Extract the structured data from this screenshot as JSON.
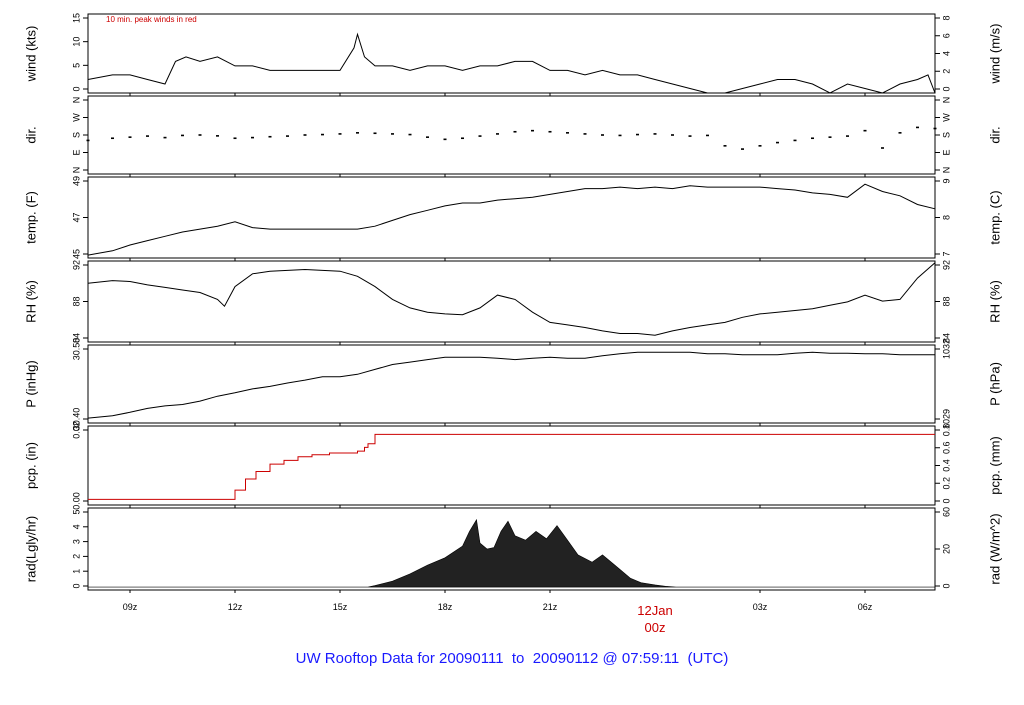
{
  "title": "UW Rooftop Data for 20090111  to  20090112 @ 07:59:11  (UTC)",
  "colors": {
    "primary_line": "#000000",
    "accent": "#cc0000",
    "title": "#1a1aff",
    "frame": "#000000"
  },
  "x_axis": {
    "ticks": [
      "09z",
      "12z",
      "15z",
      "18z",
      "21z",
      "03z",
      "06z"
    ],
    "day_marker": {
      "line1": "12Jan",
      "line2": "00z"
    }
  },
  "chart_data": [
    {
      "type": "line",
      "ylabel": "wind (kts)",
      "ylabel_right": "wind (m/s)",
      "annotation": "10 min. peak winds in red",
      "ylim": [
        0,
        17.5
      ],
      "yticks": [
        "0",
        "5",
        "10",
        "15"
      ],
      "yticks_right": [
        "0",
        "2",
        "4",
        "6",
        "8"
      ],
      "x": [
        7.8,
        8.5,
        9.0,
        9.5,
        10.0,
        10.3,
        10.6,
        11.0,
        11.5,
        12.0,
        12.5,
        13.0,
        13.5,
        14.0,
        14.5,
        15.0,
        15.4,
        15.5,
        15.7,
        16.0,
        16.5,
        17.0,
        17.5,
        18.0,
        18.5,
        19.0,
        19.5,
        20.0,
        20.5,
        21.0,
        21.5,
        22.0,
        22.5,
        23.0,
        23.5,
        24.0,
        24.5,
        25.0,
        25.5,
        26.0,
        26.5,
        27.0,
        27.5,
        28.0,
        28.5,
        29.0,
        29.5,
        30.0,
        30.5,
        31.0,
        31.5,
        31.8,
        32.0
      ],
      "values": [
        3,
        4,
        4,
        3,
        2,
        7,
        8,
        7,
        8,
        6,
        6,
        5,
        5,
        5,
        5,
        5,
        10,
        13,
        8,
        6,
        6,
        5,
        6,
        6,
        5,
        6,
        6,
        7,
        7,
        5,
        5,
        4,
        5,
        4,
        4,
        3,
        2,
        1,
        0,
        0,
        1,
        2,
        3,
        3,
        2,
        0,
        2,
        1,
        0,
        2,
        3,
        4,
        0
      ]
    },
    {
      "type": "scatter",
      "ylabel": "dir.",
      "ylabel_right": "dir.",
      "ylim": [
        0,
        360
      ],
      "yticks": [
        "N",
        "E",
        "S",
        "W",
        "N"
      ],
      "yticks_right": [
        "N",
        "E",
        "S",
        "W",
        "N"
      ],
      "x": [
        7.8,
        8.5,
        9.0,
        9.5,
        10.0,
        10.5,
        11.0,
        11.5,
        12.0,
        12.5,
        13.0,
        13.5,
        14.0,
        14.5,
        15.0,
        15.5,
        16.0,
        16.5,
        17.0,
        17.5,
        18.0,
        18.5,
        19.0,
        19.5,
        20.0,
        20.5,
        21.0,
        21.5,
        22.0,
        22.5,
        23.0,
        23.5,
        24.0,
        24.5,
        25.0,
        25.5,
        26.0,
        26.5,
        27.0,
        27.5,
        28.0,
        28.5,
        29.0,
        29.5,
        30.0,
        30.5,
        31.0,
        31.5,
        32.0
      ],
      "values": [
        155,
        165,
        170,
        175,
        168,
        178,
        180,
        176,
        165,
        168,
        172,
        175,
        180,
        182,
        185,
        190,
        188,
        185,
        182,
        170,
        160,
        165,
        175,
        185,
        195,
        200,
        195,
        190,
        185,
        180,
        178,
        182,
        185,
        180,
        175,
        178,
        130,
        115,
        130,
        145,
        155,
        165,
        170,
        175,
        200,
        120,
        190,
        215,
        210
      ]
    },
    {
      "type": "line",
      "ylabel": "temp. (F)",
      "ylabel_right": "temp. (C)",
      "ylim": [
        44.6,
        50.2
      ],
      "yticks": [
        "45",
        "47",
        "49"
      ],
      "yticks_right": [
        "7",
        "8",
        "9"
      ],
      "x": [
        7.8,
        8.5,
        9.0,
        9.5,
        10.0,
        10.5,
        11.0,
        11.5,
        12.0,
        12.5,
        13.0,
        13.5,
        14.0,
        14.5,
        15.0,
        15.5,
        16.0,
        16.5,
        17.0,
        17.5,
        18.0,
        18.5,
        19.0,
        19.5,
        20.0,
        20.5,
        21.0,
        21.5,
        22.0,
        22.5,
        23.0,
        23.5,
        24.0,
        24.5,
        25.0,
        25.5,
        26.0,
        26.5,
        27.0,
        27.5,
        28.0,
        28.5,
        29.0,
        29.5,
        30.0,
        30.5,
        31.0,
        31.5,
        32.0
      ],
      "values": [
        44.8,
        45.1,
        45.5,
        45.8,
        46.1,
        46.4,
        46.6,
        46.8,
        47.1,
        46.7,
        46.6,
        46.6,
        46.6,
        46.6,
        46.6,
        46.6,
        46.8,
        47.2,
        47.6,
        47.9,
        48.2,
        48.4,
        48.4,
        48.6,
        48.7,
        48.8,
        49.0,
        49.2,
        49.4,
        49.4,
        49.5,
        49.4,
        49.5,
        49.4,
        49.6,
        49.5,
        49.5,
        49.5,
        49.5,
        49.4,
        49.3,
        49.1,
        49.0,
        48.8,
        49.7,
        49.2,
        48.9,
        48.3,
        48.0
      ]
    },
    {
      "type": "line",
      "ylabel": "RH (%)",
      "ylabel_right": "RH (%)",
      "ylim": [
        83.5,
        93
      ],
      "yticks": [
        "84",
        "88",
        "92"
      ],
      "yticks_right": [
        "84",
        "88",
        "92"
      ],
      "x": [
        7.8,
        8.5,
        9.0,
        9.5,
        10.0,
        10.5,
        11.0,
        11.5,
        11.7,
        12.0,
        12.5,
        13.0,
        14.0,
        15.0,
        15.5,
        16.0,
        16.5,
        17.0,
        17.5,
        18.0,
        18.5,
        19.0,
        19.5,
        20.0,
        20.5,
        21.0,
        21.5,
        22.0,
        22.5,
        23.0,
        23.5,
        24.0,
        24.5,
        25.0,
        25.5,
        26.0,
        26.5,
        27.0,
        27.5,
        28.0,
        28.5,
        29.0,
        29.5,
        30.0,
        30.5,
        31.0,
        31.5,
        32.0
      ],
      "values": [
        90.4,
        90.7,
        90.6,
        90.2,
        89.9,
        89.6,
        89.3,
        88.5,
        87.7,
        90.0,
        91.5,
        91.8,
        92.0,
        91.8,
        91.2,
        90.0,
        88.5,
        87.5,
        87.0,
        86.8,
        86.7,
        87.5,
        89.0,
        88.5,
        87.0,
        85.8,
        85.5,
        85.2,
        84.8,
        84.5,
        84.5,
        84.3,
        84.8,
        85.2,
        85.5,
        85.8,
        86.4,
        86.8,
        87.0,
        87.2,
        87.4,
        87.8,
        88.2,
        89.0,
        88.3,
        88.5,
        91.0,
        92.8
      ]
    },
    {
      "type": "line",
      "ylabel": "P (inHg)",
      "ylabel_right": "P (hPa)",
      "ylim": [
        30.37,
        30.53
      ],
      "yticks": [
        "30.40",
        "30.50"
      ],
      "yticks_right": [
        "1029",
        "1032"
      ],
      "x": [
        7.8,
        8.5,
        9.0,
        9.5,
        10.0,
        10.5,
        11.0,
        11.5,
        12.0,
        12.5,
        13.0,
        13.5,
        14.0,
        14.5,
        15.0,
        15.5,
        16.0,
        16.5,
        17.0,
        17.5,
        18.0,
        18.5,
        19.0,
        19.5,
        20.0,
        20.5,
        21.0,
        21.5,
        22.0,
        22.5,
        23.0,
        23.5,
        24.0,
        24.5,
        25.0,
        25.5,
        26.0,
        26.5,
        27.0,
        27.5,
        28.0,
        28.5,
        29.0,
        29.5,
        30.0,
        30.5,
        31.0,
        31.5,
        32.0
      ],
      "values": [
        30.38,
        30.385,
        30.392,
        30.4,
        30.405,
        30.408,
        30.415,
        30.425,
        30.432,
        30.44,
        30.445,
        30.452,
        30.458,
        30.465,
        30.465,
        30.47,
        30.48,
        30.49,
        30.495,
        30.5,
        30.505,
        30.505,
        30.505,
        30.503,
        30.5,
        30.503,
        30.505,
        30.503,
        30.503,
        30.508,
        30.512,
        30.515,
        30.515,
        30.515,
        30.515,
        30.512,
        30.512,
        30.51,
        30.51,
        30.51,
        30.513,
        30.515,
        30.513,
        30.513,
        30.512,
        30.512,
        30.51,
        30.51,
        30.51
      ]
    },
    {
      "type": "line",
      "ylabel": "pcp. (in)",
      "ylabel_right": "pcp. (mm)",
      "ylim": [
        -0.003,
        0.0395
      ],
      "yticks": [
        "0.00",
        "0.02"
      ],
      "yticks_right": [
        "0",
        "0.2",
        "0.4",
        "0.6",
        "0.8"
      ],
      "x": [
        7.8,
        11.8,
        12.0,
        12.3,
        12.6,
        13.0,
        13.4,
        13.8,
        14.2,
        14.7,
        15.2,
        15.5,
        15.7,
        15.8,
        16.0,
        32.0
      ],
      "values": [
        0,
        0,
        0.005,
        0.011,
        0.015,
        0.019,
        0.021,
        0.023,
        0.024,
        0.025,
        0.025,
        0.026,
        0.028,
        0.03,
        0.035,
        0.035
      ]
    },
    {
      "type": "area",
      "ylabel": "rad(Lgly/hr)",
      "ylabel_right": "rad (W/m^2)",
      "ylim": [
        -0.2,
        5.4
      ],
      "yticks": [
        "0",
        "1",
        "2",
        "3",
        "4",
        "5"
      ],
      "yticks_right": [
        "0",
        "20",
        "60"
      ],
      "x": [
        7.8,
        15.8,
        16.0,
        16.5,
        17.0,
        17.5,
        18.0,
        18.5,
        18.7,
        18.9,
        19.0,
        19.2,
        19.4,
        19.6,
        19.8,
        20.0,
        20.3,
        20.6,
        20.9,
        21.2,
        21.5,
        21.8,
        22.2,
        22.5,
        22.8,
        23.0,
        23.3,
        23.6,
        24.0,
        24.3,
        24.6,
        32.0
      ],
      "values": [
        0,
        0,
        0.1,
        0.4,
        0.9,
        1.5,
        2.0,
        2.8,
        3.8,
        4.6,
        3.0,
        2.6,
        2.7,
        3.8,
        4.5,
        3.5,
        3.2,
        3.8,
        3.3,
        4.2,
        3.2,
        2.2,
        1.7,
        2.2,
        1.6,
        1.2,
        0.6,
        0.3,
        0.15,
        0.05,
        0,
        0
      ]
    }
  ]
}
